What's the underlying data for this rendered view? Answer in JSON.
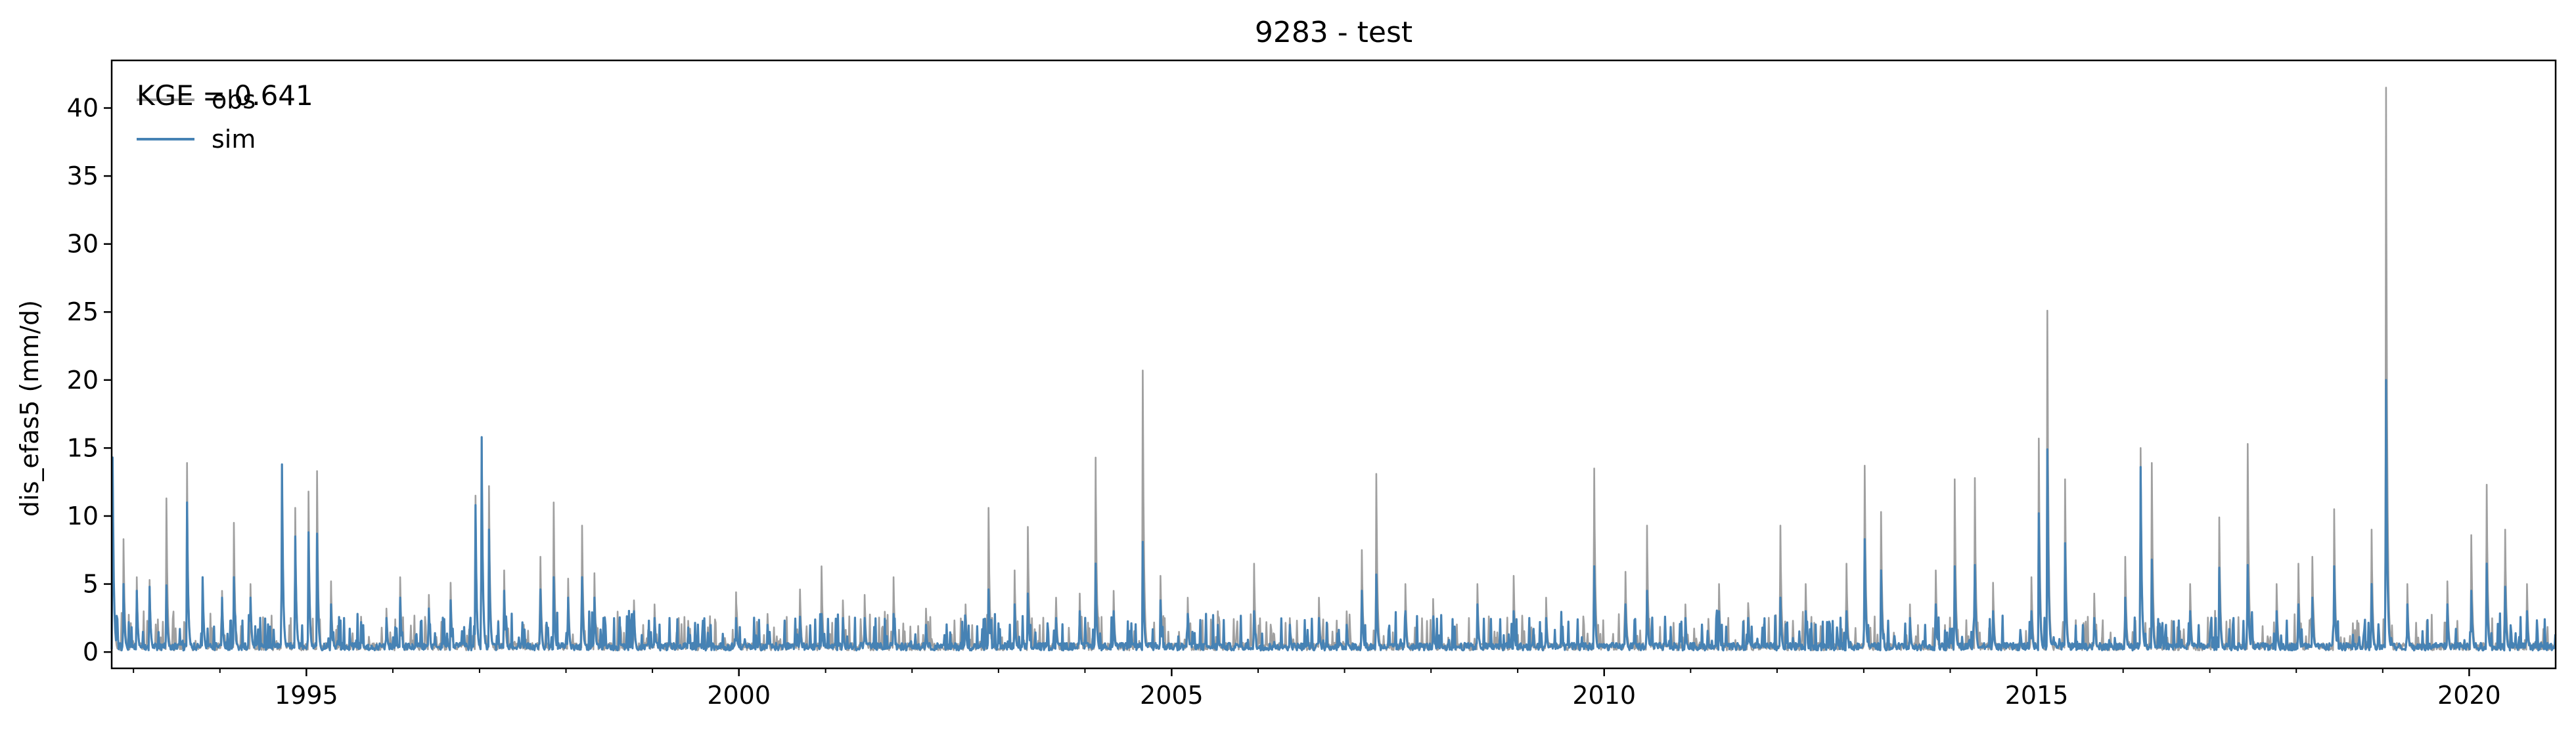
{
  "chart_data": {
    "type": "line",
    "title": "9283 - test",
    "xlabel": "",
    "ylabel": "dis_efas5 (mm/d)",
    "annotation": "KGE = 0.641",
    "xlim": [
      "1992-10-01",
      "2020-12-31"
    ],
    "ylim": [
      -1.2,
      43.5
    ],
    "x_ticks": [
      "1995",
      "2000",
      "2005",
      "2010",
      "2015",
      "2020"
    ],
    "y_ticks": [
      "0",
      "5",
      "10",
      "15",
      "20",
      "25",
      "30",
      "35",
      "40"
    ],
    "legend_position": "top-left",
    "grid": false,
    "series": [
      {
        "name": "obs",
        "color": "#a0a0a0",
        "peaks": [
          [
            "1992-10-05",
            14.0
          ],
          [
            "1992-11-20",
            8.3
          ],
          [
            "1993-01-15",
            5.5
          ],
          [
            "1993-03-10",
            5.3
          ],
          [
            "1993-05-20",
            11.3
          ],
          [
            "1993-08-15",
            13.9
          ],
          [
            "1993-10-20",
            5.3
          ],
          [
            "1994-01-10",
            4.5
          ],
          [
            "1994-03-01",
            9.5
          ],
          [
            "1994-05-10",
            5.0
          ],
          [
            "1994-09-20",
            13.7
          ],
          [
            "1994-11-15",
            10.6
          ],
          [
            "1995-01-10",
            11.8
          ],
          [
            "1995-02-15",
            13.3
          ],
          [
            "1995-04-15",
            5.2
          ],
          [
            "1995-08-20",
            2.6
          ],
          [
            "1995-12-05",
            3.2
          ],
          [
            "1996-02-01",
            5.5
          ],
          [
            "1996-06-01",
            4.2
          ],
          [
            "1996-09-01",
            5.1
          ],
          [
            "1996-12-15",
            11.5
          ],
          [
            "1997-01-10",
            15.7
          ],
          [
            "1997-02-10",
            12.2
          ],
          [
            "1997-04-15",
            6.0
          ],
          [
            "1997-09-15",
            7.0
          ],
          [
            "1997-11-10",
            11.0
          ],
          [
            "1998-01-10",
            5.4
          ],
          [
            "1998-03-10",
            9.3
          ],
          [
            "1998-05-01",
            5.8
          ],
          [
            "1998-10-15",
            3.8
          ],
          [
            "1999-01-10",
            3.5
          ],
          [
            "1999-06-01",
            2.3
          ],
          [
            "1999-12-20",
            4.4
          ],
          [
            "2000-05-01",
            2.8
          ],
          [
            "2000-09-15",
            4.6
          ],
          [
            "2000-12-15",
            6.3
          ],
          [
            "2001-03-15",
            3.8
          ],
          [
            "2001-06-15",
            4.2
          ],
          [
            "2001-10-15",
            5.5
          ],
          [
            "2002-03-01",
            3.2
          ],
          [
            "2002-08-15",
            3.5
          ],
          [
            "2002-11-20",
            10.6
          ],
          [
            "2003-03-10",
            6.0
          ],
          [
            "2003-05-05",
            9.2
          ],
          [
            "2003-09-01",
            4.0
          ],
          [
            "2003-12-10",
            4.3
          ],
          [
            "2004-02-15",
            14.3
          ],
          [
            "2004-05-01",
            4.5
          ],
          [
            "2004-09-01",
            20.7
          ],
          [
            "2004-11-15",
            5.6
          ],
          [
            "2005-03-10",
            4.0
          ],
          [
            "2005-07-15",
            3.0
          ],
          [
            "2005-12-15",
            6.5
          ],
          [
            "2006-05-15",
            2.5
          ],
          [
            "2006-09-15",
            4.0
          ],
          [
            "2007-01-10",
            3.0
          ],
          [
            "2007-03-15",
            7.5
          ],
          [
            "2007-05-15",
            13.1
          ],
          [
            "2007-09-15",
            5.0
          ],
          [
            "2008-01-10",
            3.9
          ],
          [
            "2008-07-15",
            5.0
          ],
          [
            "2008-12-15",
            5.6
          ],
          [
            "2009-05-01",
            4.0
          ],
          [
            "2009-11-20",
            13.5
          ],
          [
            "2010-04-01",
            5.9
          ],
          [
            "2010-07-01",
            9.3
          ],
          [
            "2010-12-10",
            3.5
          ],
          [
            "2011-05-01",
            5.0
          ],
          [
            "2011-09-01",
            3.6
          ],
          [
            "2012-01-15",
            9.3
          ],
          [
            "2012-05-01",
            5.0
          ],
          [
            "2012-10-20",
            6.5
          ],
          [
            "2013-01-05",
            13.7
          ],
          [
            "2013-03-15",
            10.3
          ],
          [
            "2013-07-15",
            3.5
          ],
          [
            "2013-11-01",
            6.0
          ],
          [
            "2014-01-20",
            12.7
          ],
          [
            "2014-04-15",
            12.8
          ],
          [
            "2014-07-01",
            5.1
          ],
          [
            "2014-12-10",
            5.5
          ],
          [
            "2015-01-10",
            15.7
          ],
          [
            "2015-02-15",
            25.1
          ],
          [
            "2015-05-01",
            12.7
          ],
          [
            "2015-09-01",
            4.3
          ],
          [
            "2016-01-10",
            7.0
          ],
          [
            "2016-03-15",
            15.0
          ],
          [
            "2016-05-01",
            13.9
          ],
          [
            "2016-10-10",
            5.0
          ],
          [
            "2017-02-10",
            9.9
          ],
          [
            "2017-06-10",
            15.3
          ],
          [
            "2017-10-10",
            5.0
          ],
          [
            "2018-01-10",
            6.5
          ],
          [
            "2018-03-10",
            7.0
          ],
          [
            "2018-06-10",
            10.5
          ],
          [
            "2018-11-15",
            9.0
          ],
          [
            "2019-01-15",
            41.5
          ],
          [
            "2019-04-15",
            5.0
          ],
          [
            "2019-10-01",
            5.2
          ],
          [
            "2020-01-10",
            8.6
          ],
          [
            "2020-03-15",
            12.3
          ],
          [
            "2020-06-01",
            9.0
          ],
          [
            "2020-09-01",
            5.0
          ]
        ]
      },
      {
        "name": "sim",
        "color": "#4682b4",
        "peaks": [
          [
            "1992-10-05",
            14.3
          ],
          [
            "1992-11-20",
            5.0
          ],
          [
            "1993-01-15",
            4.5
          ],
          [
            "1993-03-10",
            4.8
          ],
          [
            "1993-05-20",
            4.9
          ],
          [
            "1993-08-15",
            11.0
          ],
          [
            "1993-10-20",
            5.5
          ],
          [
            "1994-01-10",
            4.0
          ],
          [
            "1994-03-01",
            5.5
          ],
          [
            "1994-05-10",
            4.0
          ],
          [
            "1994-09-20",
            13.8
          ],
          [
            "1994-11-15",
            8.5
          ],
          [
            "1995-01-10",
            8.8
          ],
          [
            "1995-02-15",
            8.7
          ],
          [
            "1995-04-15",
            3.5
          ],
          [
            "1995-08-20",
            2.2
          ],
          [
            "1995-12-05",
            2.5
          ],
          [
            "1996-02-01",
            4.0
          ],
          [
            "1996-06-01",
            3.2
          ],
          [
            "1996-09-01",
            3.8
          ],
          [
            "1996-12-15",
            10.8
          ],
          [
            "1997-01-10",
            15.8
          ],
          [
            "1997-02-10",
            9.0
          ],
          [
            "1997-04-15",
            4.5
          ],
          [
            "1997-09-15",
            4.6
          ],
          [
            "1997-11-10",
            5.5
          ],
          [
            "1998-01-10",
            4.0
          ],
          [
            "1998-03-10",
            5.5
          ],
          [
            "1998-05-01",
            4.0
          ],
          [
            "1998-10-15",
            3.0
          ],
          [
            "1999-01-10",
            2.5
          ],
          [
            "1999-06-01",
            1.8
          ],
          [
            "1999-12-20",
            2.5
          ],
          [
            "2000-05-01",
            2.0
          ],
          [
            "2000-09-15",
            2.6
          ],
          [
            "2000-12-15",
            2.8
          ],
          [
            "2001-03-15",
            2.5
          ],
          [
            "2001-06-15",
            2.5
          ],
          [
            "2001-10-15",
            2.8
          ],
          [
            "2002-03-01",
            2.0
          ],
          [
            "2002-08-15",
            2.3
          ],
          [
            "2002-11-20",
            4.6
          ],
          [
            "2003-03-10",
            3.5
          ],
          [
            "2003-05-05",
            4.3
          ],
          [
            "2003-09-01",
            2.5
          ],
          [
            "2003-12-10",
            3.0
          ],
          [
            "2004-02-15",
            6.5
          ],
          [
            "2004-05-01",
            3.0
          ],
          [
            "2004-09-01",
            8.1
          ],
          [
            "2004-11-15",
            3.8
          ],
          [
            "2005-03-10",
            2.8
          ],
          [
            "2005-07-15",
            2.0
          ],
          [
            "2005-12-15",
            3.0
          ],
          [
            "2006-05-15",
            2.0
          ],
          [
            "2006-09-15",
            2.5
          ],
          [
            "2007-01-10",
            2.0
          ],
          [
            "2007-03-15",
            4.5
          ],
          [
            "2007-05-15",
            5.7
          ],
          [
            "2007-09-15",
            3.0
          ],
          [
            "2008-01-10",
            2.5
          ],
          [
            "2008-07-15",
            3.5
          ],
          [
            "2008-12-15",
            3.0
          ],
          [
            "2009-05-01",
            2.5
          ],
          [
            "2009-11-20",
            6.3
          ],
          [
            "2010-04-01",
            3.5
          ],
          [
            "2010-07-01",
            4.5
          ],
          [
            "2010-12-10",
            2.5
          ],
          [
            "2011-05-01",
            3.0
          ],
          [
            "2011-09-01",
            2.5
          ],
          [
            "2012-01-15",
            4.0
          ],
          [
            "2012-05-01",
            3.0
          ],
          [
            "2012-10-20",
            3.0
          ],
          [
            "2013-01-05",
            8.3
          ],
          [
            "2013-03-15",
            6.0
          ],
          [
            "2013-07-15",
            2.5
          ],
          [
            "2013-11-01",
            3.5
          ],
          [
            "2014-01-20",
            6.3
          ],
          [
            "2014-04-15",
            6.4
          ],
          [
            "2014-07-01",
            3.0
          ],
          [
            "2014-12-10",
            3.0
          ],
          [
            "2015-01-10",
            10.2
          ],
          [
            "2015-02-15",
            14.9
          ],
          [
            "2015-05-01",
            8.0
          ],
          [
            "2015-09-01",
            2.5
          ],
          [
            "2016-01-10",
            4.0
          ],
          [
            "2016-03-15",
            13.6
          ],
          [
            "2016-05-01",
            6.8
          ],
          [
            "2016-10-10",
            3.0
          ],
          [
            "2017-02-10",
            6.2
          ],
          [
            "2017-06-10",
            6.4
          ],
          [
            "2017-10-10",
            3.0
          ],
          [
            "2018-01-10",
            3.5
          ],
          [
            "2018-03-10",
            4.0
          ],
          [
            "2018-06-10",
            6.3
          ],
          [
            "2018-11-15",
            5.0
          ],
          [
            "2019-01-15",
            20.0
          ],
          [
            "2019-04-15",
            3.5
          ],
          [
            "2019-10-01",
            3.5
          ],
          [
            "2020-01-10",
            4.5
          ],
          [
            "2020-03-15",
            6.5
          ],
          [
            "2020-06-01",
            4.8
          ],
          [
            "2020-09-01",
            3.0
          ]
        ]
      }
    ]
  }
}
